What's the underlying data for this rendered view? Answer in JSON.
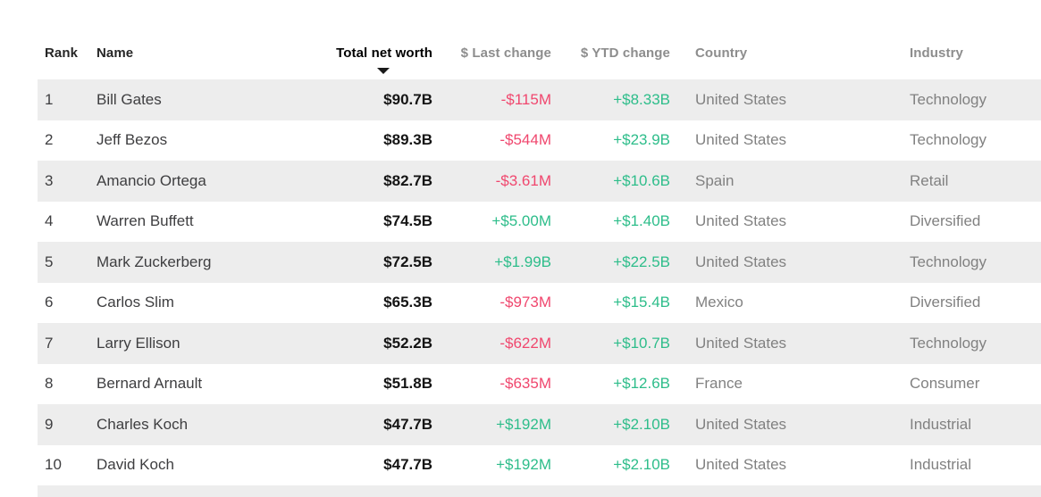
{
  "table": {
    "columns": {
      "rank": {
        "label": "Rank"
      },
      "name": {
        "label": "Name"
      },
      "net_worth": {
        "label": "Total net worth",
        "sorted": "desc"
      },
      "last_change": {
        "label": "$ Last change"
      },
      "ytd_change": {
        "label": "$ YTD change"
      },
      "country": {
        "label": "Country"
      },
      "industry": {
        "label": "Industry"
      }
    },
    "rows": [
      {
        "rank": "1",
        "name": "Bill Gates",
        "net_worth": "$90.7B",
        "last_change": "-$115M",
        "ytd_change": "+$8.33B",
        "country": "United States",
        "industry": "Technology"
      },
      {
        "rank": "2",
        "name": "Jeff Bezos",
        "net_worth": "$89.3B",
        "last_change": "-$544M",
        "ytd_change": "+$23.9B",
        "country": "United States",
        "industry": "Technology"
      },
      {
        "rank": "3",
        "name": "Amancio Ortega",
        "net_worth": "$82.7B",
        "last_change": "-$3.61M",
        "ytd_change": "+$10.6B",
        "country": "Spain",
        "industry": "Retail"
      },
      {
        "rank": "4",
        "name": "Warren Buffett",
        "net_worth": "$74.5B",
        "last_change": "+$5.00M",
        "ytd_change": "+$1.40B",
        "country": "United States",
        "industry": "Diversified"
      },
      {
        "rank": "5",
        "name": "Mark Zuckerberg",
        "net_worth": "$72.5B",
        "last_change": "+$1.99B",
        "ytd_change": "+$22.5B",
        "country": "United States",
        "industry": "Technology"
      },
      {
        "rank": "6",
        "name": "Carlos Slim",
        "net_worth": "$65.3B",
        "last_change": "-$973M",
        "ytd_change": "+$15.4B",
        "country": "Mexico",
        "industry": "Diversified"
      },
      {
        "rank": "7",
        "name": "Larry Ellison",
        "net_worth": "$52.2B",
        "last_change": "-$622M",
        "ytd_change": "+$10.7B",
        "country": "United States",
        "industry": "Technology"
      },
      {
        "rank": "8",
        "name": "Bernard Arnault",
        "net_worth": "$51.8B",
        "last_change": "-$635M",
        "ytd_change": "+$12.6B",
        "country": "France",
        "industry": "Consumer"
      },
      {
        "rank": "9",
        "name": "Charles Koch",
        "net_worth": "$47.7B",
        "last_change": "+$192M",
        "ytd_change": "+$2.10B",
        "country": "United States",
        "industry": "Industrial"
      },
      {
        "rank": "10",
        "name": "David Koch",
        "net_worth": "$47.7B",
        "last_change": "+$192M",
        "ytd_change": "+$2.10B",
        "country": "United States",
        "industry": "Industrial"
      }
    ]
  },
  "colors": {
    "positive": "#2dbd8a",
    "negative": "#f0476e",
    "stripe": "#ededed",
    "header_muted": "#8d8d8d",
    "net_worth_text": "#141414"
  }
}
